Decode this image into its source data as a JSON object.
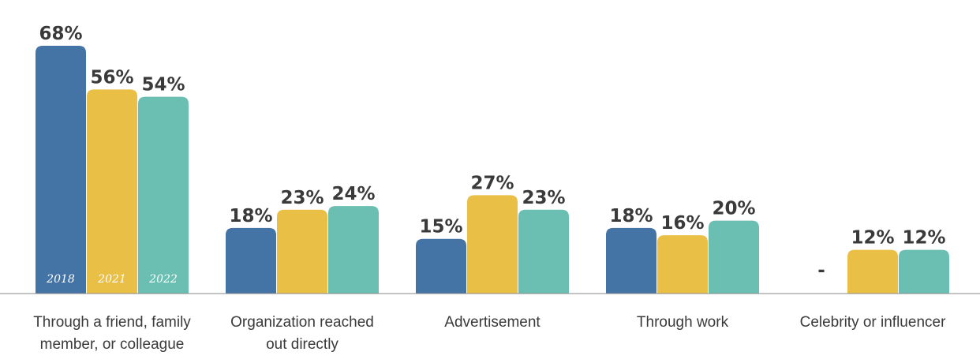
{
  "chart_data": {
    "type": "bar",
    "categories": [
      [
        "Through a friend, family",
        "member, or colleague"
      ],
      [
        "Organization reached",
        "out directly"
      ],
      [
        "Advertisement"
      ],
      [
        "Through work"
      ],
      [
        "Celebrity or influencer"
      ]
    ],
    "series": [
      {
        "name": "2018",
        "color": "#4474a6",
        "values": [
          68,
          18,
          15,
          18,
          null
        ],
        "labels": [
          "68%",
          "18%",
          "15%",
          "18%",
          "-"
        ]
      },
      {
        "name": "2021",
        "color": "#e9bf45",
        "values": [
          56,
          23,
          27,
          16,
          12
        ],
        "labels": [
          "56%",
          "23%",
          "27%",
          "16%",
          "12%"
        ]
      },
      {
        "name": "2022",
        "color": "#6bbfb2",
        "values": [
          54,
          24,
          23,
          20,
          12
        ],
        "labels": [
          "54%",
          "24%",
          "23%",
          "20%",
          "12%"
        ]
      }
    ],
    "ylim": [
      0,
      68
    ],
    "legend": "inside-first-group-bars",
    "grid": false
  }
}
